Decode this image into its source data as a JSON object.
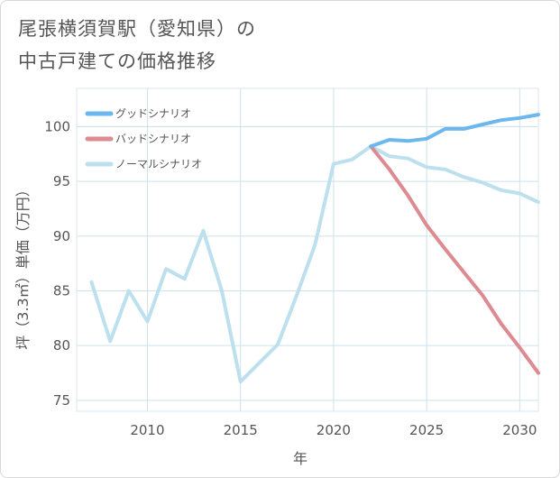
{
  "title_lines": [
    "尾張横須賀駅（愛知県）の",
    "中古戸建ての価格推移"
  ],
  "chart_data": {
    "type": "line",
    "xlabel": "年",
    "ylabel": "坪（3.3㎡）単価（万円）",
    "xlim": [
      2006.2,
      2031
    ],
    "ylim": [
      74,
      103.5
    ],
    "x_ticks": [
      2010,
      2015,
      2020,
      2025,
      2030
    ],
    "y_ticks": [
      75,
      80,
      85,
      90,
      95,
      100
    ],
    "legend_position": "top-left",
    "series": [
      {
        "name": "グッドシナリオ",
        "color": "#6bb7ee",
        "x": [
          2022,
          2023,
          2024,
          2025,
          2026,
          2027,
          2028,
          2029,
          2030,
          2031
        ],
        "y": [
          98.2,
          98.8,
          98.7,
          98.9,
          99.8,
          99.8,
          100.2,
          100.6,
          100.8,
          101.1
        ]
      },
      {
        "name": "バッドシナリオ",
        "color": "#dd8a91",
        "x": [
          2022,
          2023,
          2024,
          2025,
          2026,
          2027,
          2028,
          2029,
          2030,
          2031
        ],
        "y": [
          98.2,
          96.1,
          93.7,
          91.0,
          88.8,
          86.7,
          84.6,
          82.0,
          79.8,
          77.5
        ]
      },
      {
        "name": "ノーマルシナリオ",
        "color": "#bde0ee",
        "x": [
          2007,
          2008,
          2009,
          2010,
          2011,
          2012,
          2013,
          2014,
          2015,
          2016,
          2017,
          2018,
          2019,
          2020,
          2021,
          2022,
          2023,
          2024,
          2025,
          2026,
          2027,
          2028,
          2029,
          2030,
          2031
        ],
        "y": [
          85.8,
          80.4,
          85.0,
          82.2,
          87.0,
          86.1,
          90.5,
          85.0,
          76.7,
          78.4,
          80.1,
          84.5,
          89.2,
          96.6,
          97.0,
          98.2,
          97.3,
          97.1,
          96.3,
          96.1,
          95.4,
          94.9,
          94.2,
          93.9,
          93.1
        ]
      }
    ]
  }
}
